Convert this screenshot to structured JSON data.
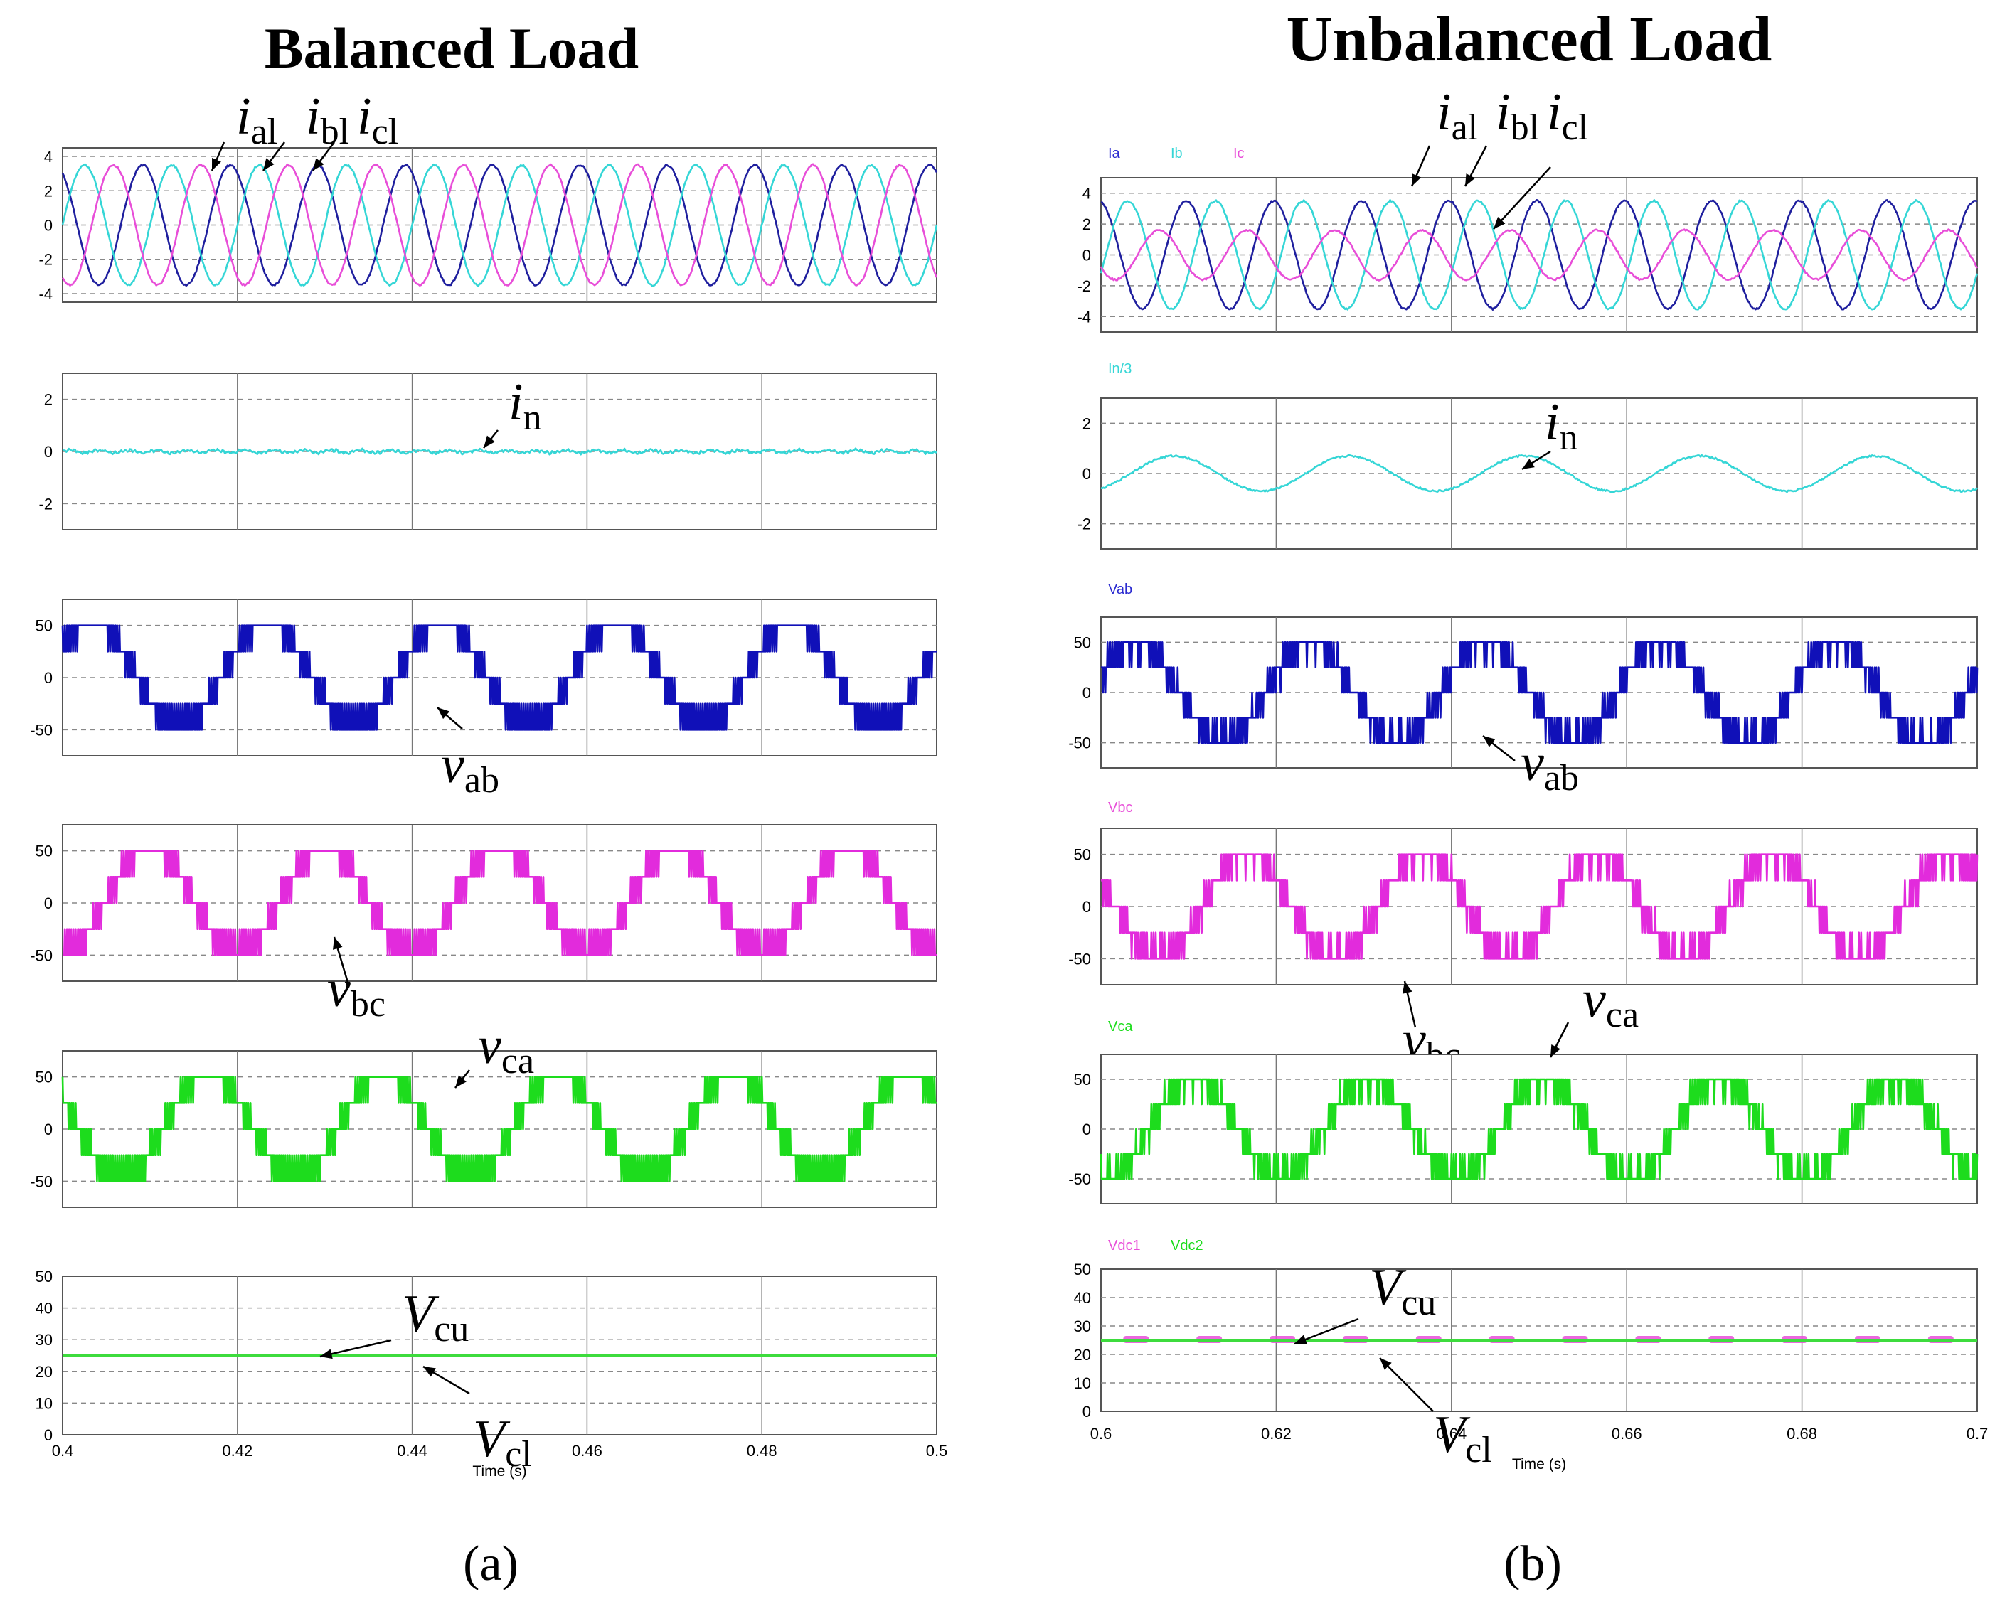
{
  "figure": {
    "label_a": "(a)",
    "label_b": "(b)"
  },
  "chart_data": [
    {
      "type": "line",
      "title": "Balanced Load",
      "xlabel": "Time (s)",
      "xlim": [
        0.4,
        0.5
      ],
      "xticks": [
        "0.4",
        "0.42",
        "0.44",
        "0.46",
        "0.48",
        "0.5"
      ],
      "grid": true,
      "panels": [
        {
          "ylim": [
            -4.5,
            4.5
          ],
          "yticks": [
            4,
            2,
            0,
            -2,
            -4
          ],
          "legend": [],
          "series": [
            {
              "color": "#1f1f9e",
              "kind": "sine",
              "amplitude": 3.5,
              "frequency": 100,
              "phase_deg": 120
            },
            {
              "color": "#35d6d6",
              "kind": "sine",
              "amplitude": 3.5,
              "frequency": 100,
              "phase_deg": 0
            },
            {
              "color": "#e84ed8",
              "kind": "sine",
              "amplitude": 3.5,
              "frequency": 100,
              "phase_deg": -120
            }
          ],
          "annotations": [
            {
              "base": "i",
              "sub": "al"
            },
            {
              "base": "i",
              "sub": "bl"
            },
            {
              "base": "i",
              "sub": "cl"
            }
          ]
        },
        {
          "ylim": [
            -3,
            3
          ],
          "yticks": [
            2,
            0,
            -2
          ],
          "legend": [],
          "series": [
            {
              "color": "#35d6d6",
              "kind": "ripple",
              "amplitude": 0.05
            }
          ],
          "annotations": [
            {
              "base": "i",
              "sub": "n"
            }
          ]
        },
        {
          "ylim": [
            -75,
            75
          ],
          "yticks": [
            50,
            0,
            -50
          ],
          "legend": [],
          "series": [
            {
              "color": "#1010b8",
              "kind": "multilevel",
              "amplitude": 50,
              "frequency": 50,
              "phase_deg": 30
            }
          ],
          "annotations": [
            {
              "base": "v",
              "sub": "ab"
            }
          ]
        },
        {
          "ylim": [
            -75,
            75
          ],
          "yticks": [
            50,
            0,
            -50
          ],
          "legend": [],
          "series": [
            {
              "color": "#e22bdc",
              "kind": "multilevel",
              "amplitude": 50,
              "frequency": 50,
              "phase_deg": -90
            }
          ],
          "annotations": [
            {
              "base": "v",
              "sub": "bc"
            }
          ]
        },
        {
          "ylim": [
            -75,
            75
          ],
          "yticks": [
            50,
            0,
            -50
          ],
          "legend": [],
          "series": [
            {
              "color": "#1ddc1d",
              "kind": "multilevel",
              "amplitude": 50,
              "frequency": 50,
              "phase_deg": 150
            }
          ],
          "annotations": [
            {
              "base": "v",
              "sub": "ca"
            }
          ]
        },
        {
          "ylim": [
            0,
            50
          ],
          "yticks": [
            50,
            40,
            30,
            20,
            10,
            0
          ],
          "legend": [],
          "series": [
            {
              "color": "#3ddc3d",
              "kind": "dc",
              "value": 25
            }
          ],
          "annotations": [
            {
              "base": "V",
              "sub": "cu"
            },
            {
              "base": "V",
              "sub": "cl"
            }
          ]
        }
      ]
    },
    {
      "type": "line",
      "title": "Unbalanced Load",
      "xlabel": "Time (s)",
      "xlim": [
        0.6,
        0.7
      ],
      "xticks": [
        "0.6",
        "0.62",
        "0.64",
        "0.66",
        "0.68",
        "0.7"
      ],
      "grid": true,
      "panels": [
        {
          "ylim": [
            -5,
            5
          ],
          "yticks": [
            4,
            2,
            0,
            -2,
            -4
          ],
          "legend": [
            {
              "name": "Ia",
              "color": "#2a2ad0"
            },
            {
              "name": "Ib",
              "color": "#35d6d6"
            },
            {
              "name": "Ic",
              "color": "#e84ed8"
            }
          ],
          "series": [
            {
              "color": "#1f1f9e",
              "kind": "sine",
              "amplitude": 3.5,
              "frequency": 100,
              "phase_deg": 100
            },
            {
              "color": "#35d6d6",
              "kind": "sine",
              "amplitude": 3.5,
              "frequency": 100,
              "phase_deg": -20
            },
            {
              "color": "#e84ed8",
              "kind": "sine",
              "amplitude": 1.6,
              "frequency": 100,
              "phase_deg": -150
            }
          ],
          "annotations": [
            {
              "base": "i",
              "sub": "al"
            },
            {
              "base": "i",
              "sub": "bl"
            },
            {
              "base": "i",
              "sub": "cl"
            }
          ]
        },
        {
          "ylim": [
            -3,
            3
          ],
          "yticks": [
            2,
            0,
            -2
          ],
          "legend": [
            {
              "name": "In/3",
              "color": "#35d6d6"
            }
          ],
          "series": [
            {
              "color": "#35d6d6",
              "kind": "sine",
              "amplitude": 0.7,
              "frequency": 50,
              "phase_deg": -60
            }
          ],
          "annotations": [
            {
              "base": "i",
              "sub": "n"
            }
          ]
        },
        {
          "ylim": [
            -75,
            75
          ],
          "yticks": [
            50,
            0,
            -50
          ],
          "legend": [
            {
              "name": "Vab",
              "color": "#2a2ad0"
            }
          ],
          "series": [
            {
              "color": "#1010b8",
              "kind": "multilevel",
              "amplitude": 50,
              "frequency": 50,
              "phase_deg": 20
            }
          ],
          "annotations": [
            {
              "base": "v",
              "sub": "ab"
            }
          ]
        },
        {
          "ylim": [
            -75,
            75
          ],
          "yticks": [
            50,
            0,
            -50
          ],
          "legend": [
            {
              "name": "Vbc",
              "color": "#e84ed8"
            }
          ],
          "series": [
            {
              "color": "#e22bdc",
              "kind": "multilevel",
              "amplitude": 50,
              "frequency": 50,
              "phase_deg": 150
            }
          ],
          "annotations": [
            {
              "base": "v",
              "sub": "bc"
            }
          ]
        },
        {
          "ylim": [
            -75,
            75
          ],
          "yticks": [
            50,
            0,
            -50
          ],
          "legend": [
            {
              "name": "Vca",
              "color": "#1ddc1d"
            }
          ],
          "series": [
            {
              "color": "#1ddc1d",
              "kind": "multilevel",
              "amplitude": 50,
              "frequency": 50,
              "phase_deg": -100
            }
          ],
          "annotations": [
            {
              "base": "v",
              "sub": "ca"
            }
          ]
        },
        {
          "ylim": [
            0,
            50
          ],
          "yticks": [
            50,
            40,
            30,
            20,
            10,
            0
          ],
          "legend": [
            {
              "name": "Vdc1",
              "color": "#e84ed8"
            },
            {
              "name": "Vdc2",
              "color": "#1ddc1d"
            }
          ],
          "series": [
            {
              "color": "#e84ed8",
              "kind": "dc",
              "value": 25
            },
            {
              "color": "#3ddc3d",
              "kind": "dc",
              "value": 25
            }
          ],
          "annotations": [
            {
              "base": "V",
              "sub": "cu"
            },
            {
              "base": "V",
              "sub": "cl"
            }
          ]
        }
      ]
    }
  ]
}
